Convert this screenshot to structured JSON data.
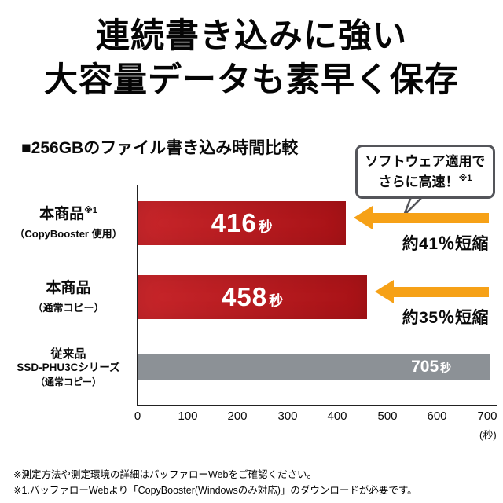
{
  "title": {
    "line1": "連続書き込みに強い",
    "line2": "大容量データも素早く保存"
  },
  "section": {
    "heading": "■256GBのファイル書き込み時間比較"
  },
  "callout": {
    "line1": "ソフトウェア適用で",
    "line2": "さらに高速！",
    "note": "※1"
  },
  "chart_data": {
    "type": "bar",
    "orientation": "horizontal",
    "title": "256GBのファイル書き込み時間比較",
    "xlabel": "秒",
    "xlim": [
      0,
      700
    ],
    "x_ticks": [
      "0",
      "100",
      "200",
      "300",
      "400",
      "500",
      "600",
      "700"
    ],
    "axis_unit_label": "(秒)",
    "arrow_color": "#f6a117",
    "bars": [
      {
        "label_main": "本商品",
        "label_note": "※1",
        "label_sub": "（CopyBooster 使用）",
        "value": 416,
        "value_text": "416",
        "unit": "秒",
        "color": "#c3151a",
        "annotation": "約41％短縮"
      },
      {
        "label_main": "本商品",
        "label_note": "",
        "label_sub": "（通常コピー）",
        "value": 458,
        "value_text": "458",
        "unit": "秒",
        "color": "#c3151a",
        "annotation": "約35％短縮"
      },
      {
        "label_main": "従来品",
        "label_line2": "SSD-PHU3Cシリーズ",
        "label_sub": "（通常コピー）",
        "value": 705,
        "value_text": "705",
        "unit": "秒",
        "color": "#8c9196",
        "annotation": ""
      }
    ]
  },
  "footnotes": [
    "※測定方法や測定環境の詳細はバッファローWebをご確認ください。",
    "※1.バッファローWebより「CopyBooster(Windowsのみ対応)」のダウンロードが必要です。"
  ]
}
